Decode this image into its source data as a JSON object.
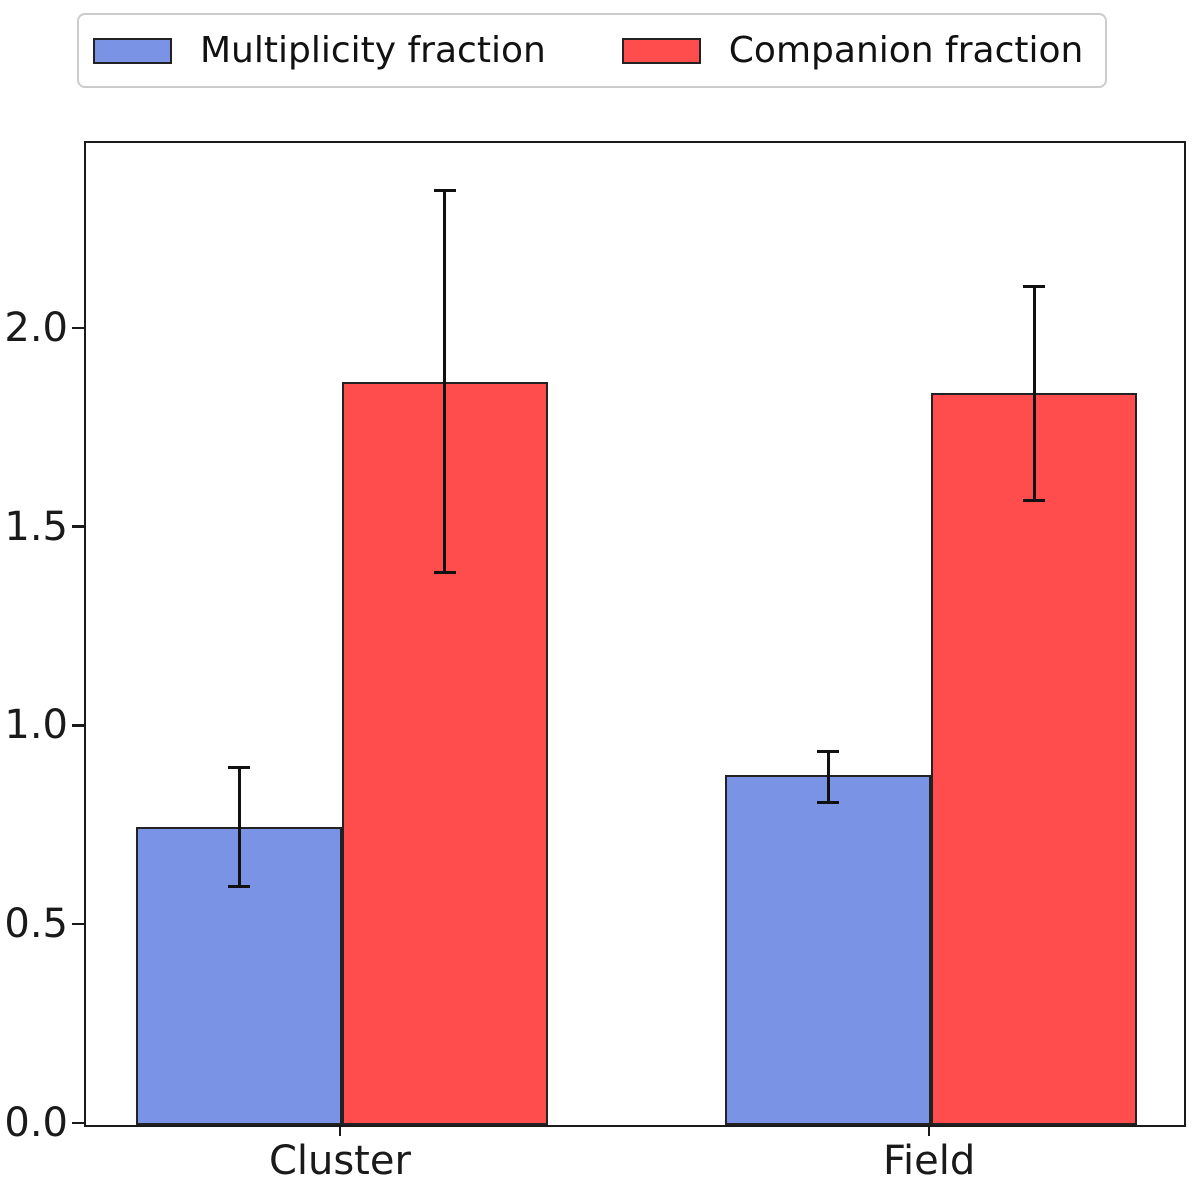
{
  "chart_data": {
    "type": "bar",
    "title": "",
    "categories": [
      "Cluster",
      "Field"
    ],
    "series": [
      {
        "name": "Multiplicity fraction",
        "color": "#7A93E4",
        "edge_color": "#222222",
        "values": [
          0.75,
          0.88
        ],
        "err_low": [
          0.6,
          0.81
        ],
        "err_high": [
          0.9,
          0.94
        ]
      },
      {
        "name": "Companion fraction",
        "color": "#FF4D4D",
        "edge_color": "#222222",
        "values": [
          1.87,
          1.84
        ],
        "err_low": [
          1.39,
          1.57
        ],
        "err_high": [
          2.35,
          2.11
        ]
      }
    ],
    "xlabel": "",
    "ylabel": "",
    "ylim": [
      0,
      2.47
    ],
    "yticks": [
      {
        "value": 0.0,
        "label": "0.0"
      },
      {
        "value": 0.5,
        "label": "0.5"
      },
      {
        "value": 1.0,
        "label": "1.0"
      },
      {
        "value": 1.5,
        "label": "1.5"
      },
      {
        "value": 2.0,
        "label": "2.0"
      }
    ],
    "grid": false,
    "legend_position": "top-outside",
    "bar_width_frac": 0.1875,
    "group_center_fracs": [
      0.2331,
      0.7697
    ],
    "errorbar": {
      "color": "#111111"
    },
    "axis_color": "#1a1a1a"
  }
}
